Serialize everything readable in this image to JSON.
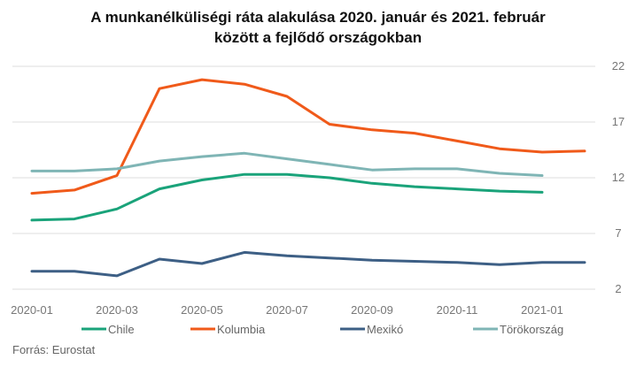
{
  "chart_data": {
    "type": "line",
    "title_line1": "A munkanélküliségi ráta alakulása 2020. január és 2021. február",
    "title_line2": "között a fejlődő országokban",
    "x": [
      "2020-01",
      "2020-02",
      "2020-03",
      "2020-04",
      "2020-05",
      "2020-06",
      "2020-07",
      "2020-08",
      "2020-09",
      "2020-10",
      "2020-11",
      "2020-12",
      "2021-01",
      "2021-02"
    ],
    "x_tick_labels": [
      "2020-01",
      "2020-03",
      "2020-05",
      "2020-07",
      "2020-09",
      "2020-11",
      "2021-01"
    ],
    "y_ticks": [
      2,
      7,
      12,
      17,
      22
    ],
    "ylim": [
      2,
      22
    ],
    "y_axis_position": "right",
    "grid": true,
    "legend_position": "bottom",
    "series": [
      {
        "name": "Chile",
        "color": "#1aa37a",
        "values": [
          8.2,
          8.3,
          9.2,
          11.0,
          11.8,
          12.3,
          12.3,
          12.0,
          11.5,
          11.2,
          11.0,
          10.8,
          10.7,
          null
        ]
      },
      {
        "name": "Kolumbia",
        "color": "#f05a1a",
        "values": [
          10.6,
          10.9,
          12.2,
          20.0,
          20.8,
          20.4,
          19.3,
          16.8,
          16.3,
          16.0,
          15.3,
          14.6,
          14.3,
          14.4
        ]
      },
      {
        "name": "Mexikó",
        "color": "#3d5f85",
        "values": [
          3.6,
          3.6,
          3.2,
          4.7,
          4.3,
          5.3,
          5.0,
          4.8,
          4.6,
          4.5,
          4.4,
          4.2,
          4.4,
          4.4
        ]
      },
      {
        "name": "Törökország",
        "color": "#7fb5b5",
        "values": [
          12.6,
          12.6,
          12.8,
          13.5,
          13.9,
          14.2,
          13.7,
          13.2,
          12.7,
          12.8,
          12.8,
          12.4,
          12.2,
          null
        ]
      }
    ]
  },
  "source": "Forrás: Eurostat"
}
